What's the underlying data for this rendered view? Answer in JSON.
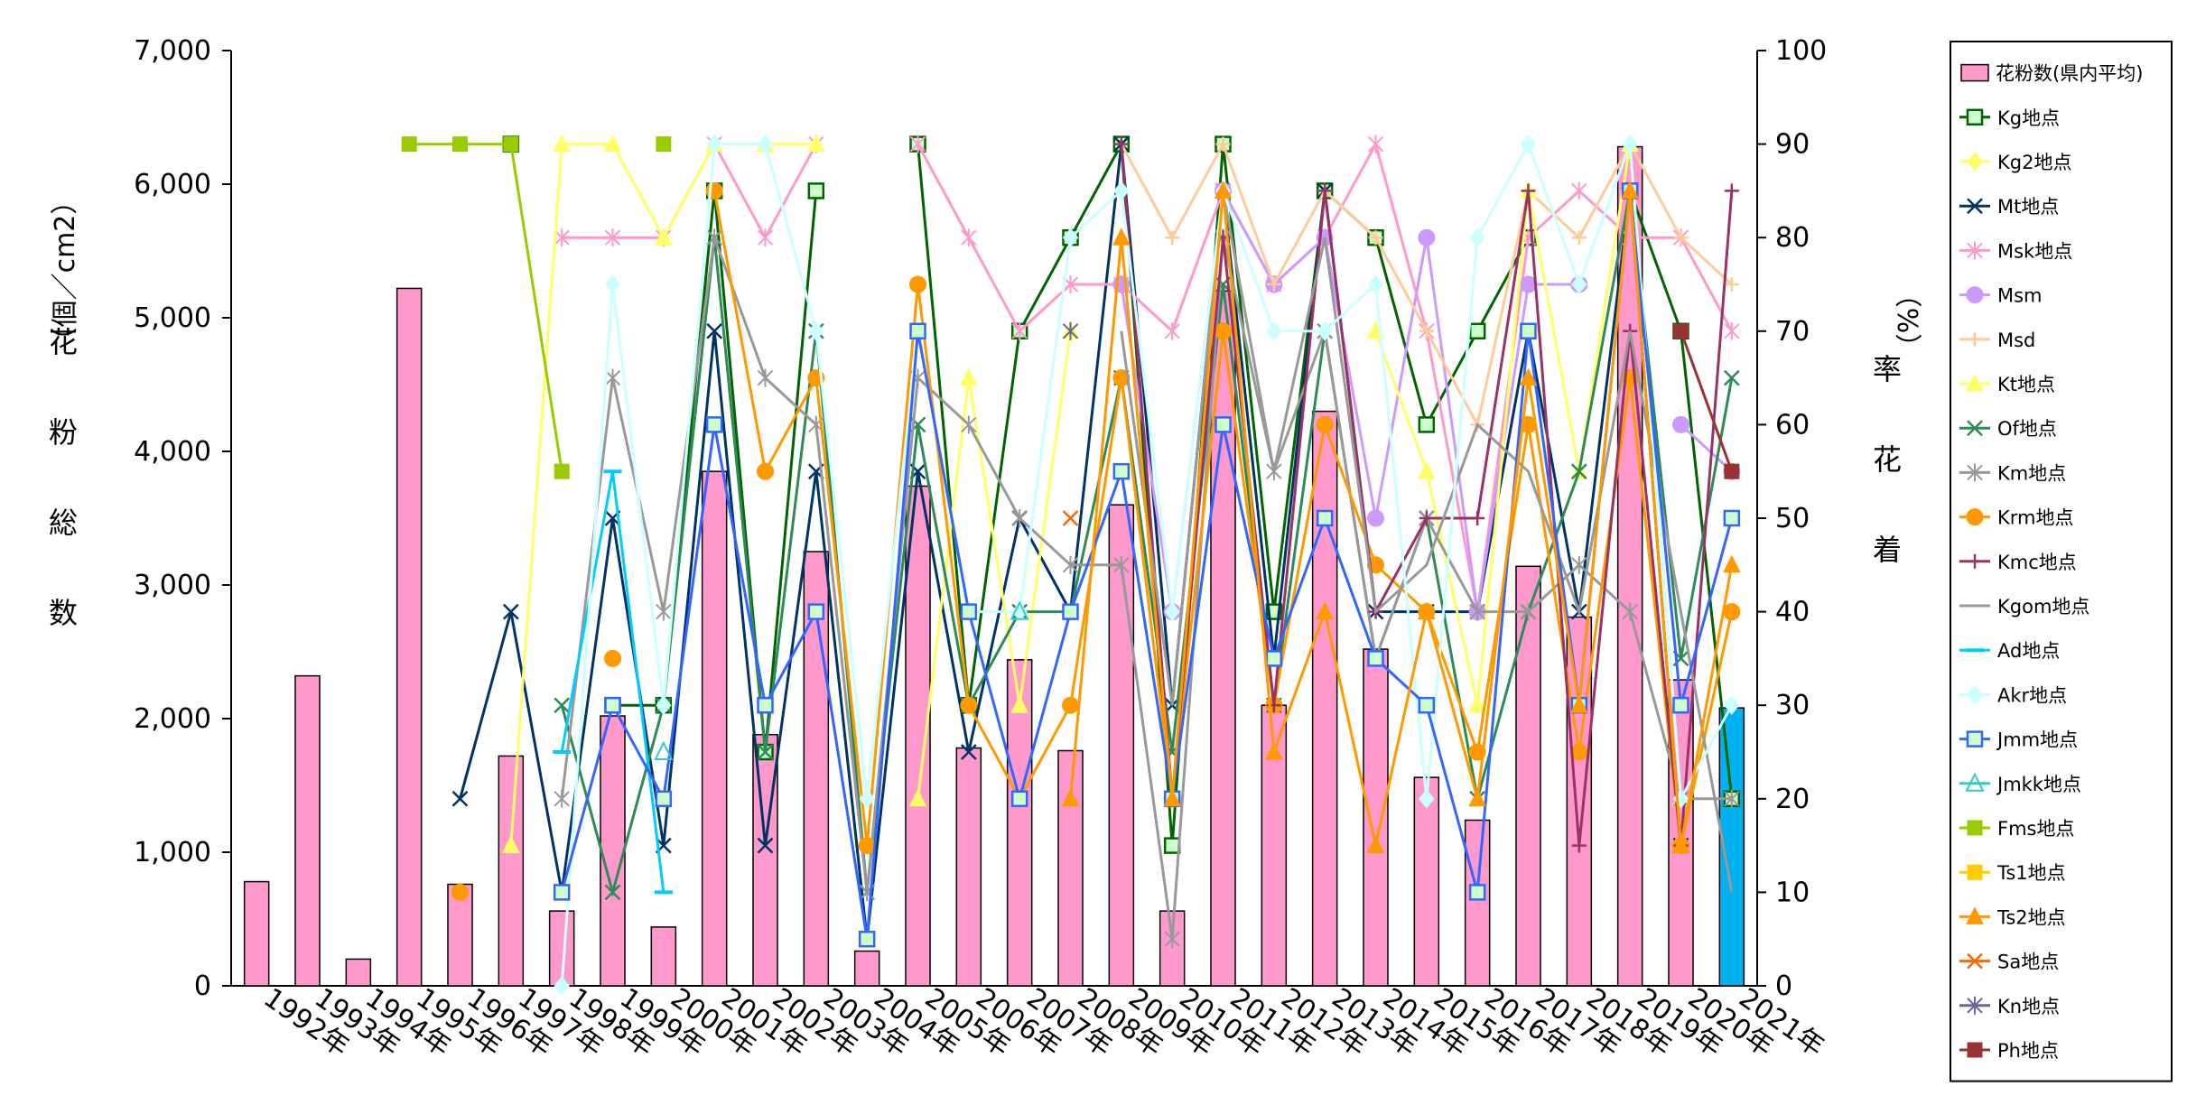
{
  "chart_data": {
    "type": "bar",
    "categories": [
      "1992年",
      "1993年",
      "1994年",
      "1995年",
      "1996年",
      "1997年",
      "1998年",
      "1999年",
      "2000年",
      "2001年",
      "2002年",
      "2003年",
      "2004年",
      "2005年",
      "2006年",
      "2007年",
      "2008年",
      "2009年",
      "2010年",
      "2011年",
      "2012年",
      "2013年",
      "2014年",
      "2015年",
      "2016年",
      "2017年",
      "2018年",
      "2019年",
      "2020年",
      "2021年"
    ],
    "y_left": {
      "label": "花粉総数（個／cm2）",
      "label_chars": [
        "花",
        "粉",
        "総",
        "数",
        "（個／cm2）"
      ],
      "lim": [
        0,
        7000
      ],
      "ticks": [
        "0",
        "1,000",
        "2,000",
        "3,000",
        "4,000",
        "5,000",
        "6,000",
        "7,000"
      ],
      "tick_values": [
        0,
        1000,
        2000,
        3000,
        4000,
        5000,
        6000,
        7000
      ]
    },
    "y_right": {
      "label": "着花率（%）",
      "label_chars": [
        "着",
        "花",
        "率",
        "（%）"
      ],
      "lim": [
        0,
        100
      ],
      "ticks": [
        "0",
        "10",
        "20",
        "30",
        "40",
        "50",
        "60",
        "70",
        "80",
        "90",
        "100"
      ],
      "tick_values": [
        0,
        10,
        20,
        30,
        40,
        50,
        60,
        70,
        80,
        90,
        100
      ]
    },
    "bar_series": {
      "name": "花粉数(県内平均)",
      "values": [
        780,
        2320,
        200,
        5220,
        760,
        1720,
        560,
        2020,
        440,
        3850,
        1880,
        3250,
        260,
        3740,
        1780,
        2440,
        1760,
        3600,
        560,
        5200,
        2100,
        4300,
        2520,
        1560,
        1240,
        3140,
        2760,
        6280,
        2290,
        2080
      ],
      "color": "#ff99cc",
      "highlight_color": "#00b0f0",
      "highlight_index": 29
    },
    "line_series": [
      {
        "name": "Kg地点",
        "color": "#006400",
        "marker": "square-open",
        "values": [
          null,
          null,
          null,
          null,
          null,
          90,
          null,
          30,
          30,
          85,
          25,
          85,
          null,
          90,
          30,
          70,
          80,
          90,
          15,
          90,
          40,
          85,
          80,
          60,
          70,
          80,
          null,
          85,
          70,
          20
        ]
      },
      {
        "name": "Kg2地点",
        "color": "#ffff66",
        "marker": "diamond",
        "values": [
          null,
          null,
          null,
          null,
          null,
          null,
          null,
          null,
          null,
          null,
          null,
          null,
          null,
          null,
          null,
          null,
          null,
          null,
          null,
          null,
          null,
          null,
          null,
          null,
          null,
          null,
          null,
          null,
          null,
          null
        ]
      },
      {
        "name": "Mt地点",
        "color": "#003366",
        "marker": "x",
        "values": [
          null,
          null,
          null,
          null,
          20,
          40,
          10,
          50,
          15,
          70,
          15,
          55,
          5,
          55,
          25,
          50,
          40,
          90,
          30,
          85,
          35,
          85,
          40,
          40,
          40,
          70,
          40,
          85,
          15,
          null
        ]
      },
      {
        "name": "Msk地点",
        "color": "#ff99cc",
        "marker": "star",
        "values": [
          null,
          null,
          null,
          null,
          null,
          null,
          80,
          80,
          80,
          90,
          80,
          90,
          null,
          90,
          80,
          70,
          75,
          75,
          70,
          85,
          75,
          80,
          90,
          70,
          40,
          80,
          85,
          80,
          80,
          70
        ]
      },
      {
        "name": "Msm",
        "color": "#cc99ff",
        "marker": "circle",
        "values": [
          null,
          null,
          null,
          null,
          null,
          null,
          null,
          null,
          null,
          null,
          null,
          null,
          null,
          null,
          null,
          null,
          null,
          75,
          40,
          85,
          75,
          80,
          50,
          80,
          40,
          75,
          75,
          null,
          60,
          55
        ]
      },
      {
        "name": "Msd",
        "color": "#ffcc99",
        "marker": "plus",
        "values": [
          null,
          null,
          null,
          null,
          null,
          null,
          null,
          null,
          null,
          null,
          null,
          null,
          null,
          null,
          null,
          null,
          null,
          90,
          80,
          90,
          75,
          85,
          80,
          70,
          60,
          85,
          80,
          90,
          80,
          75
        ]
      },
      {
        "name": "Kt地点",
        "color": "#ffff66",
        "marker": "triangle",
        "values": [
          null,
          null,
          null,
          null,
          null,
          15,
          90,
          90,
          80,
          90,
          90,
          90,
          null,
          20,
          65,
          30,
          70,
          null,
          null,
          null,
          null,
          null,
          70,
          55,
          30,
          85,
          55,
          90,
          20,
          null
        ]
      },
      {
        "name": "Of地点",
        "color": "#2e8b57",
        "marker": "x",
        "values": [
          null,
          null,
          null,
          null,
          null,
          null,
          30,
          10,
          30,
          80,
          25,
          70,
          10,
          60,
          30,
          40,
          40,
          65,
          25,
          75,
          30,
          70,
          35,
          50,
          20,
          40,
          55,
          85,
          35,
          65
        ]
      },
      {
        "name": "Km地点",
        "color": "#999999",
        "marker": "star",
        "values": [
          null,
          null,
          null,
          null,
          null,
          null,
          20,
          65,
          40,
          80,
          65,
          60,
          10,
          65,
          60,
          50,
          45,
          45,
          5,
          80,
          55,
          70,
          35,
          50,
          40,
          40,
          45,
          40,
          20,
          20
        ]
      },
      {
        "name": "Krm地点",
        "color": "#ff9900",
        "marker": "circle",
        "values": [
          null,
          null,
          null,
          null,
          10,
          null,
          null,
          35,
          null,
          85,
          55,
          65,
          15,
          75,
          30,
          20,
          30,
          65,
          20,
          70,
          30,
          60,
          45,
          40,
          25,
          60,
          25,
          65,
          15,
          40
        ]
      },
      {
        "name": "Kmc地点",
        "color": "#993366",
        "marker": "plus",
        "values": [
          null,
          null,
          null,
          null,
          null,
          null,
          null,
          null,
          null,
          null,
          null,
          null,
          null,
          null,
          null,
          null,
          null,
          90,
          20,
          80,
          30,
          85,
          40,
          50,
          50,
          85,
          15,
          70,
          15,
          85
        ]
      },
      {
        "name": "Kgom地点",
        "color": "#999999",
        "marker": "none",
        "values": [
          null,
          null,
          null,
          null,
          null,
          null,
          null,
          null,
          null,
          null,
          null,
          null,
          null,
          null,
          null,
          null,
          null,
          70,
          30,
          85,
          55,
          80,
          40,
          45,
          60,
          55,
          40,
          70,
          40,
          10
        ]
      },
      {
        "name": "Ad地点",
        "color": "#00ccff",
        "marker": "dash",
        "values": [
          null,
          null,
          null,
          null,
          null,
          null,
          25,
          55,
          10,
          null,
          null,
          null,
          null,
          null,
          null,
          null,
          null,
          null,
          null,
          null,
          null,
          null,
          null,
          null,
          null,
          null,
          null,
          null,
          null,
          null
        ]
      },
      {
        "name": "Akr地点",
        "color": "#ccffff",
        "marker": "diamond",
        "values": [
          null,
          null,
          null,
          null,
          null,
          null,
          0,
          75,
          30,
          90,
          90,
          70,
          20,
          70,
          40,
          40,
          80,
          85,
          40,
          85,
          70,
          70,
          75,
          20,
          80,
          90,
          75,
          90,
          20,
          30
        ]
      },
      {
        "name": "Jmm地点",
        "color": "#3366ff",
        "marker": "square-open",
        "values": [
          null,
          null,
          null,
          null,
          null,
          null,
          10,
          30,
          20,
          60,
          30,
          40,
          5,
          70,
          40,
          20,
          40,
          55,
          20,
          60,
          35,
          50,
          35,
          30,
          10,
          70,
          30,
          85,
          30,
          50
        ]
      },
      {
        "name": "Jmkk地点",
        "color": "#33cccc",
        "marker": "triangle-open",
        "values": [
          null,
          null,
          null,
          null,
          null,
          null,
          null,
          null,
          25,
          null,
          null,
          null,
          null,
          null,
          null,
          40,
          null,
          null,
          null,
          null,
          null,
          null,
          null,
          null,
          null,
          null,
          null,
          null,
          null,
          null
        ]
      },
      {
        "name": "Fms地点",
        "color": "#99cc00",
        "marker": "square",
        "values": [
          null,
          null,
          null,
          90,
          90,
          90,
          55,
          null,
          90,
          null,
          null,
          null,
          null,
          null,
          null,
          null,
          null,
          null,
          null,
          null,
          null,
          null,
          null,
          null,
          null,
          null,
          null,
          null,
          null,
          null
        ]
      },
      {
        "name": "Ts1地点",
        "color": "#ffcc00",
        "marker": "square",
        "values": [
          null,
          null,
          null,
          null,
          null,
          null,
          null,
          null,
          null,
          null,
          null,
          null,
          null,
          null,
          null,
          null,
          null,
          null,
          null,
          null,
          null,
          null,
          null,
          null,
          null,
          null,
          null,
          null,
          null,
          null
        ]
      },
      {
        "name": "Ts2地点",
        "color": "#ff9900",
        "marker": "triangle",
        "values": [
          null,
          null,
          null,
          null,
          null,
          null,
          null,
          null,
          null,
          null,
          null,
          null,
          null,
          null,
          null,
          null,
          20,
          80,
          20,
          85,
          25,
          40,
          15,
          40,
          20,
          65,
          30,
          85,
          15,
          45
        ]
      },
      {
        "name": "Sa地点",
        "color": "#ff6600",
        "marker": "x",
        "values": [
          null,
          null,
          null,
          null,
          null,
          null,
          null,
          null,
          null,
          null,
          null,
          null,
          null,
          null,
          null,
          null,
          50,
          null,
          null,
          null,
          null,
          null,
          null,
          null,
          null,
          null,
          null,
          null,
          null,
          null
        ]
      },
      {
        "name": "Kn地点",
        "color": "#666699",
        "marker": "star",
        "values": [
          null,
          null,
          null,
          null,
          null,
          null,
          null,
          null,
          null,
          null,
          null,
          null,
          null,
          null,
          null,
          null,
          70,
          null,
          null,
          null,
          null,
          null,
          null,
          null,
          null,
          null,
          null,
          null,
          null,
          null
        ]
      },
      {
        "name": "Ph地点",
        "color": "#993333",
        "marker": "square",
        "values": [
          null,
          null,
          null,
          null,
          null,
          null,
          null,
          null,
          null,
          null,
          null,
          null,
          null,
          null,
          null,
          null,
          null,
          null,
          null,
          null,
          null,
          null,
          null,
          null,
          null,
          null,
          null,
          null,
          70,
          55
        ]
      }
    ],
    "legend_position": "right",
    "grid": false
  }
}
